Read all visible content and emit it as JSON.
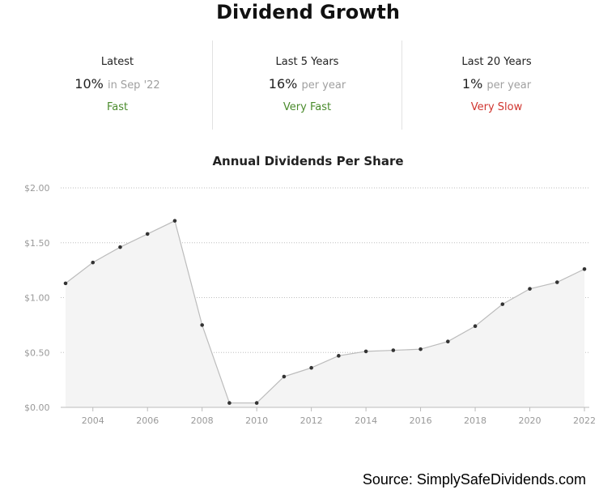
{
  "header": {
    "title": "Dividend Growth"
  },
  "stats": [
    {
      "label": "Latest",
      "value": "10%",
      "unit": "in Sep '22",
      "rating": "Fast",
      "rating_color": "#4a8b2c"
    },
    {
      "label": "Last 5 Years",
      "value": "16%",
      "unit": "per year",
      "rating": "Very Fast",
      "rating_color": "#4a8b2c"
    },
    {
      "label": "Last 20 Years",
      "value": "1%",
      "unit": "per year",
      "rating": "Very Slow",
      "rating_color": "#d0352f"
    }
  ],
  "chart_data": {
    "type": "area",
    "title": "Annual Dividends Per Share",
    "xlabel": "",
    "ylabel": "",
    "x": [
      2003,
      2004,
      2005,
      2006,
      2007,
      2008,
      2009,
      2010,
      2011,
      2012,
      2013,
      2014,
      2015,
      2016,
      2017,
      2018,
      2019,
      2020,
      2021,
      2022
    ],
    "series": [
      {
        "name": "",
        "values": [
          1.13,
          1.32,
          1.46,
          1.58,
          1.7,
          0.75,
          0.04,
          0.04,
          0.28,
          0.36,
          0.47,
          0.51,
          0.52,
          0.53,
          0.6,
          0.74,
          0.94,
          1.08,
          1.14,
          1.26
        ]
      }
    ],
    "xlim": [
      2003,
      2022
    ],
    "ylim": [
      0,
      2
    ],
    "x_ticks": [
      2004,
      2006,
      2008,
      2010,
      2012,
      2014,
      2016,
      2018,
      2020,
      2022
    ],
    "x_tick_labels": [
      "2004",
      "2006",
      "2008",
      "2010",
      "2012",
      "2014",
      "2016",
      "2018",
      "2020",
      "2022"
    ],
    "y_ticks": [
      0,
      0.5,
      1,
      1.5,
      2
    ],
    "y_tick_labels": [
      "$0.00",
      "$0.50",
      "$1.00",
      "$1.50",
      "$2.00"
    ],
    "grid": true,
    "legend": "none",
    "colors": {
      "line": "#bcbcbc",
      "fill": "#f4f4f4",
      "point": "#333333",
      "grid": "#bdbdbd",
      "axis": "#bbbbbb",
      "tick_label": "#999999"
    }
  },
  "footer": {
    "source": "Source: SimplySafeDividends.com"
  }
}
